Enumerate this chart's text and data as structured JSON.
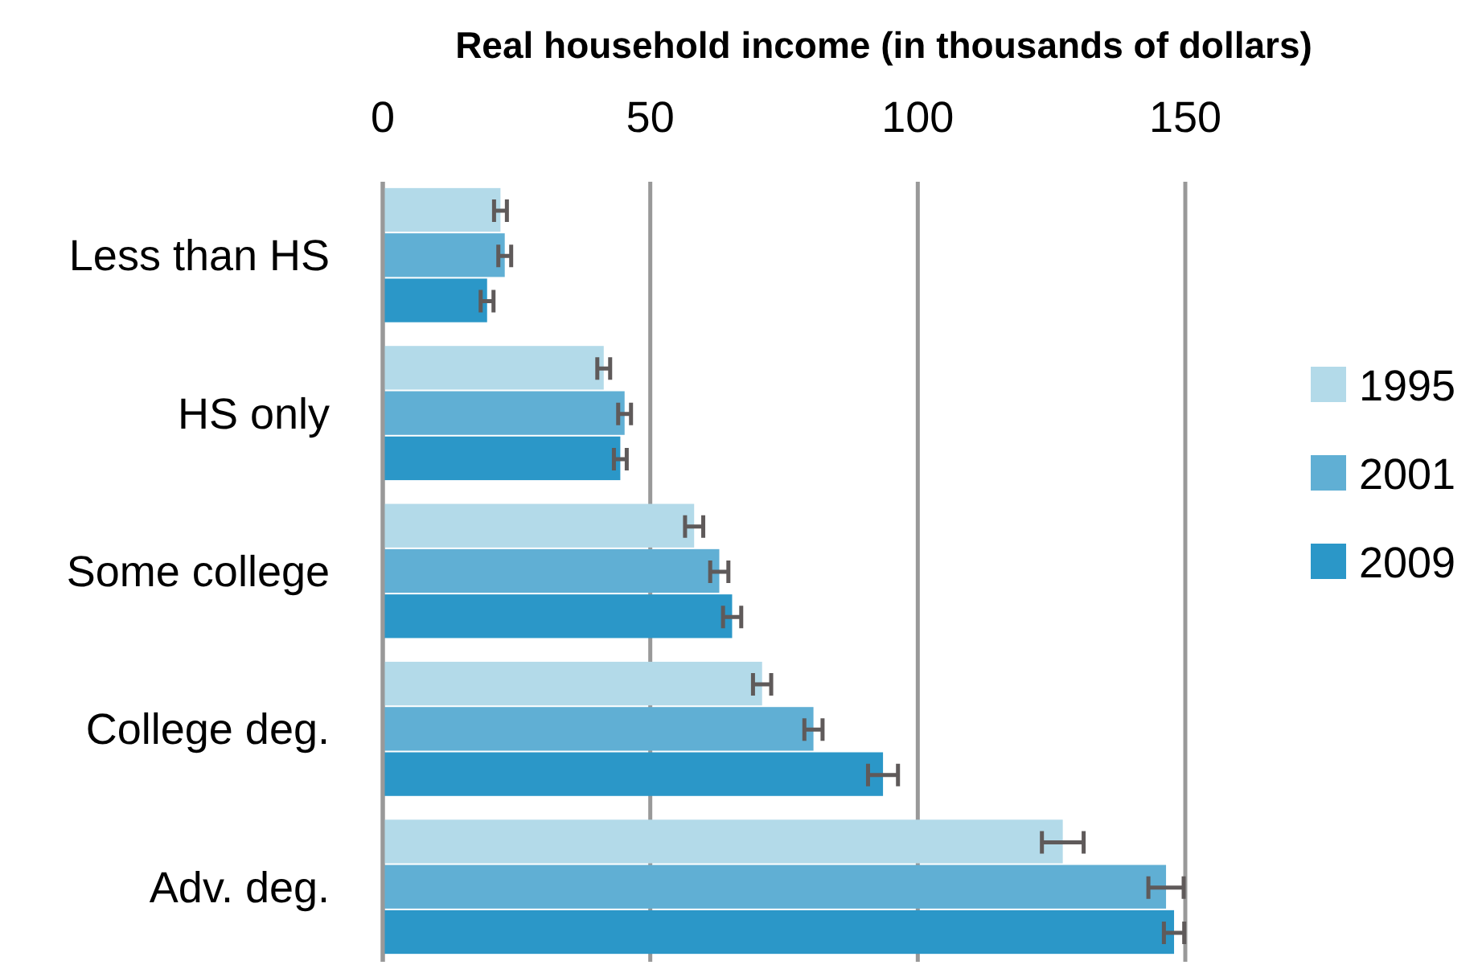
{
  "chart_data": {
    "type": "bar",
    "orientation": "horizontal",
    "xlabel": "Real household income (in thousands of dollars)",
    "categories": [
      "Less than HS",
      "HS only",
      "Some college",
      "College deg.",
      "Adv. deg."
    ],
    "series": [
      {
        "name": "1995",
        "color": "#b3dae9",
        "values": [
          22.0,
          41.3,
          58.2,
          70.9,
          127.1
        ],
        "errors": [
          1.2,
          1.2,
          1.7,
          1.7,
          3.9
        ]
      },
      {
        "name": "2001",
        "color": "#60afd4",
        "values": [
          22.8,
          45.2,
          62.9,
          80.5,
          146.4
        ],
        "errors": [
          1.2,
          1.2,
          1.7,
          1.7,
          3.3
        ]
      },
      {
        "name": "2009",
        "color": "#2b97c8",
        "values": [
          19.5,
          44.4,
          65.3,
          93.5,
          147.9
        ],
        "errors": [
          1.2,
          1.2,
          1.7,
          2.8,
          1.9
        ]
      }
    ],
    "xlim": [
      0,
      150
    ],
    "xticks": [
      0,
      50,
      100,
      150
    ],
    "grid": "x",
    "legend": "right"
  }
}
